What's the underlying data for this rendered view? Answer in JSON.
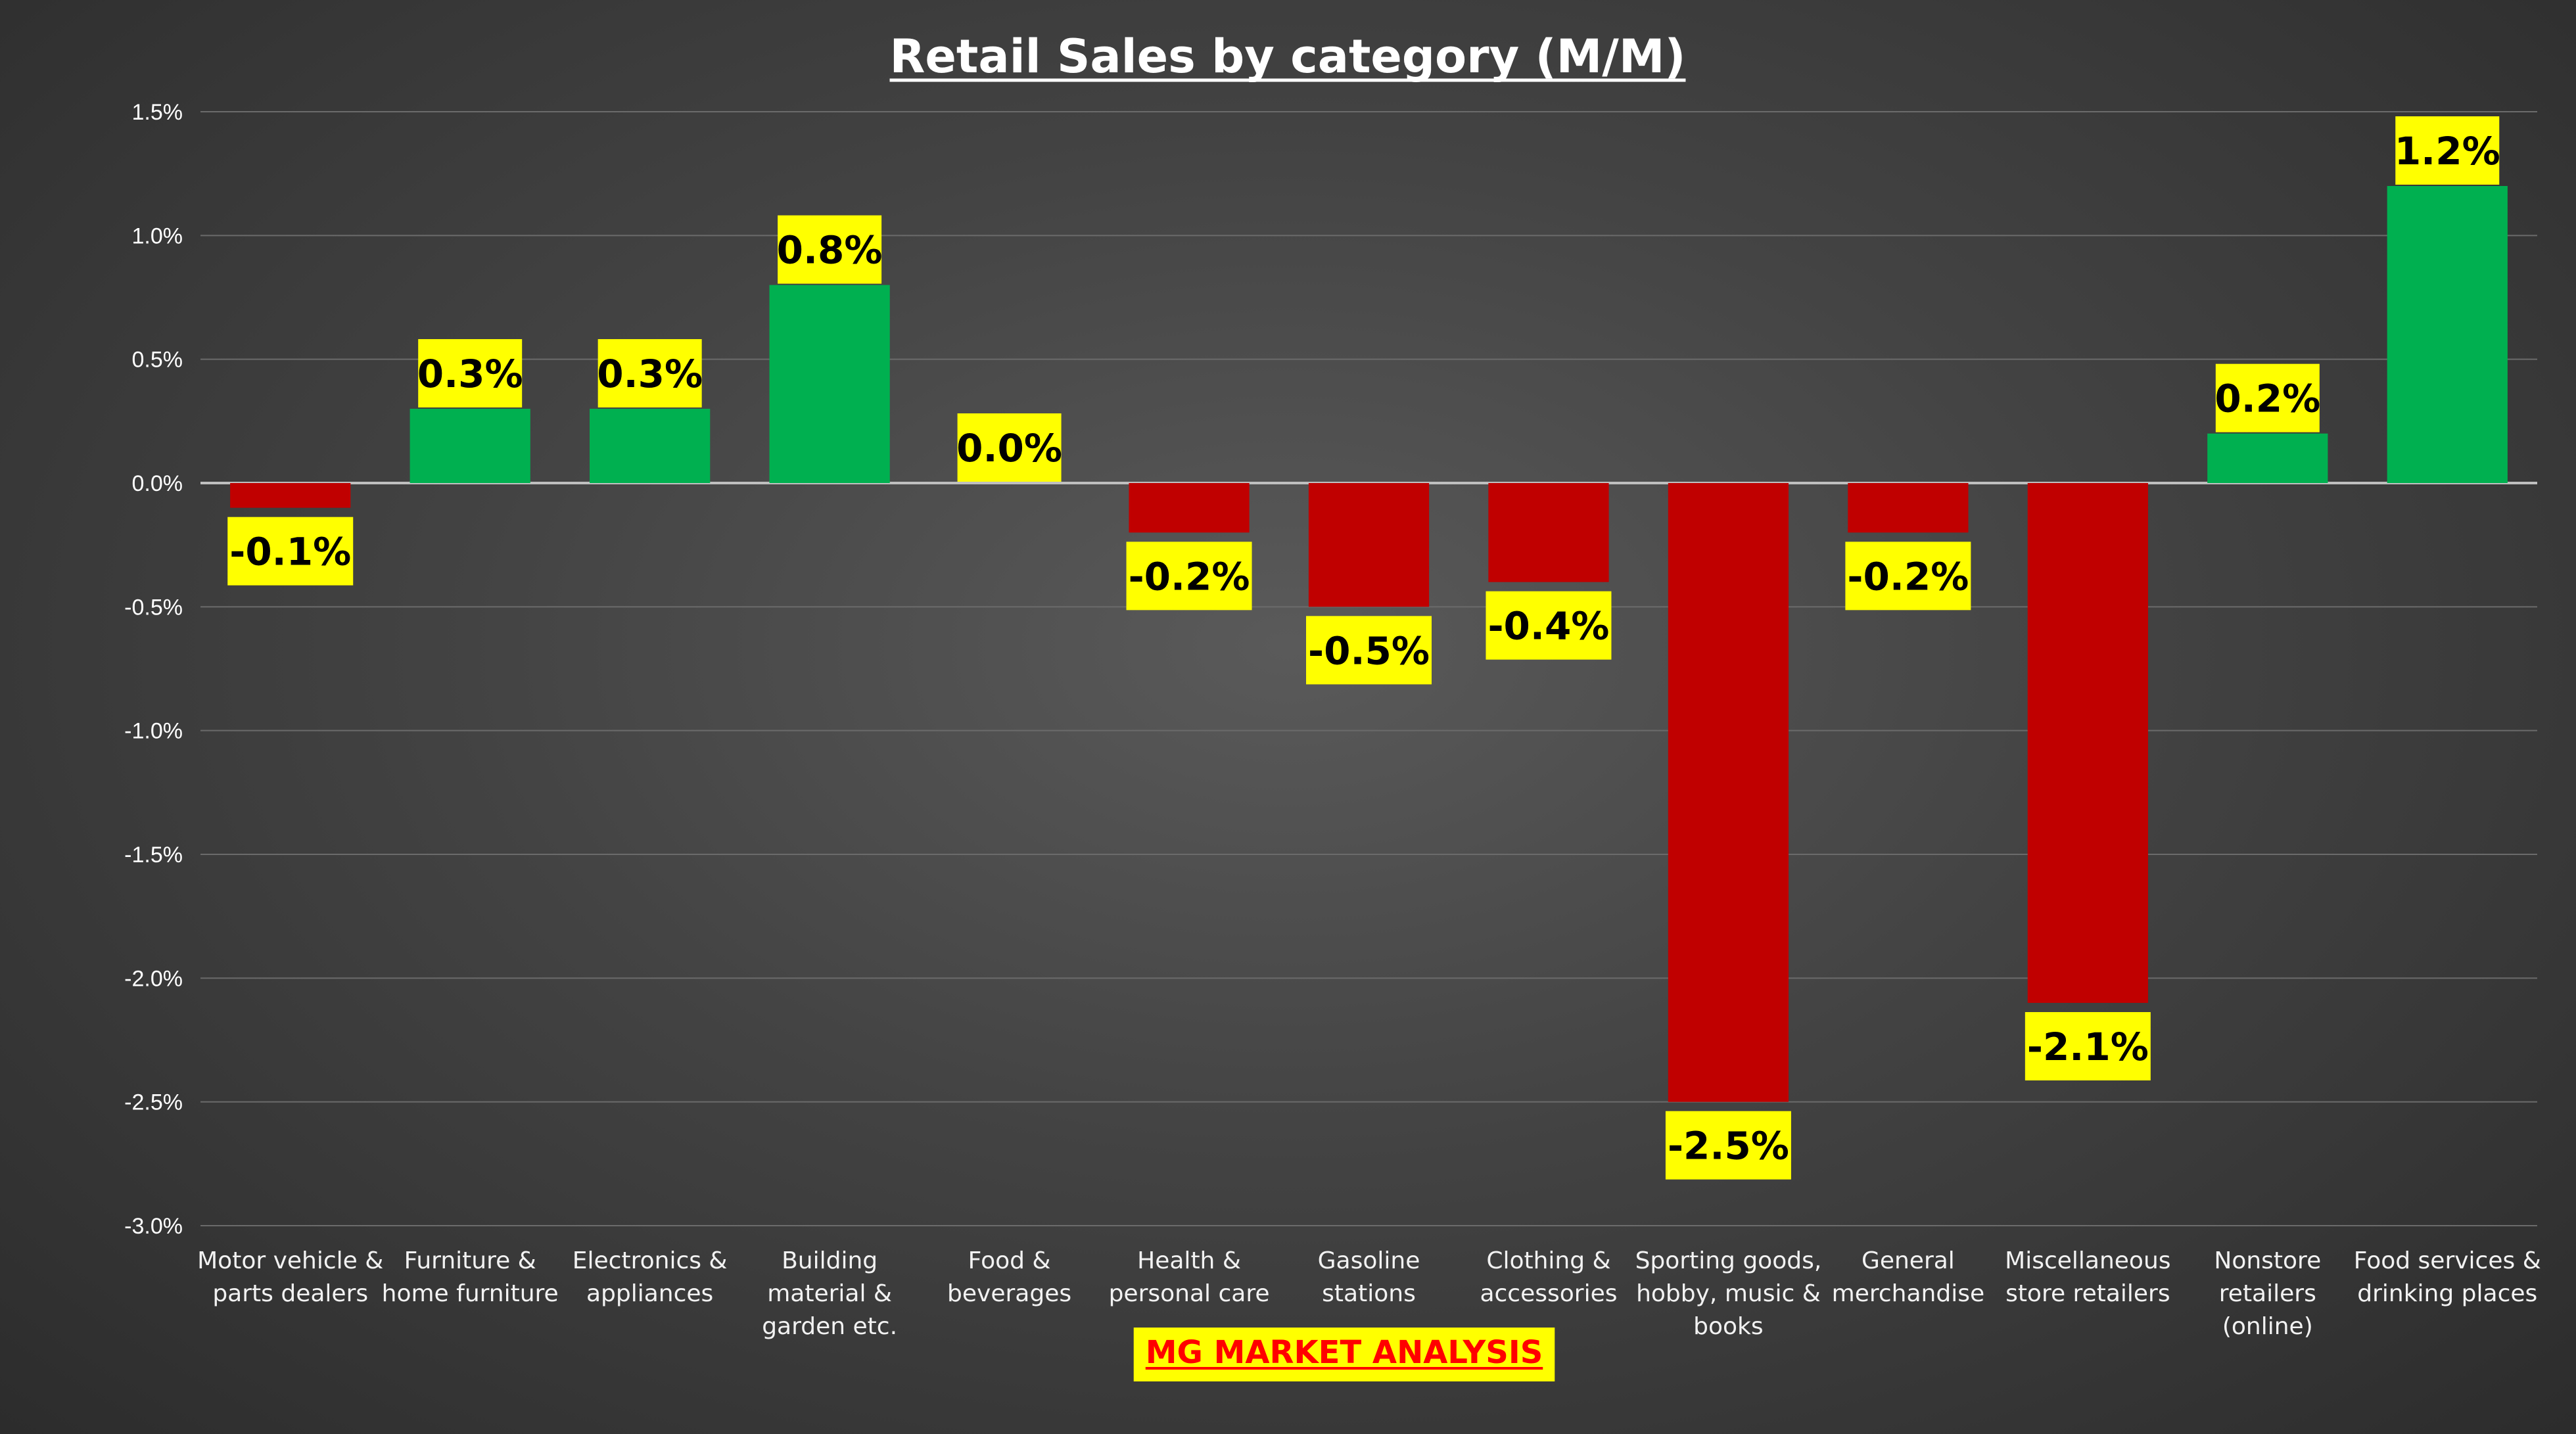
{
  "chart_data": {
    "type": "bar",
    "title": "Retail Sales by category (M/M)",
    "xlabel": "",
    "ylabel": "",
    "ylim": [
      -3.0,
      1.5
    ],
    "yticks": [
      1.5,
      1.0,
      0.5,
      0.0,
      -0.5,
      -1.0,
      -1.5,
      -2.0,
      -2.5,
      -3.0
    ],
    "ytick_labels": [
      "1.5%",
      "1.0%",
      "0.5%",
      "0.0%",
      "-0.5%",
      "-1.0%",
      "-1.5%",
      "-2.0%",
      "-2.5%",
      "-3.0%"
    ],
    "grid": true,
    "legend": "none",
    "categories": [
      [
        "Motor vehicle &",
        "parts dealers"
      ],
      [
        "Furniture &",
        "home furniture"
      ],
      [
        "Electronics &",
        "appliances"
      ],
      [
        "Building",
        "material &",
        "garden etc."
      ],
      [
        "Food &",
        "beverages"
      ],
      [
        "Health &",
        "personal care"
      ],
      [
        "Gasoline",
        "stations"
      ],
      [
        "Clothing &",
        "accessories"
      ],
      [
        "Sporting goods,",
        "hobby, music &",
        "books"
      ],
      [
        "General",
        "merchandise"
      ],
      [
        "Miscellaneous",
        "store retailers"
      ],
      [
        "Nonstore",
        "retailers",
        "(online)"
      ],
      [
        "Food services &",
        "drinking places"
      ]
    ],
    "values": [
      -0.1,
      0.3,
      0.3,
      0.8,
      0.0,
      -0.2,
      -0.5,
      -0.4,
      -2.5,
      -0.2,
      -2.1,
      0.2,
      1.2
    ],
    "data_labels": [
      "-0.1%",
      "0.3%",
      "0.3%",
      "0.8%",
      "0.0%",
      "-0.2%",
      "-0.5%",
      "-0.4%",
      "-2.5%",
      "-0.2%",
      "-2.1%",
      "0.2%",
      "1.2%"
    ],
    "colors": {
      "positive": "#00b050",
      "negative": "#c00000",
      "label_background": "#ffff00",
      "label_text": "#000000",
      "gridline": "#6b6b6b",
      "zero_line": "#bfbfbf"
    }
  },
  "watermark": {
    "text": "MG MARKET ANALYSIS",
    "text_color": "#ff0000",
    "background": "#ffff00"
  }
}
